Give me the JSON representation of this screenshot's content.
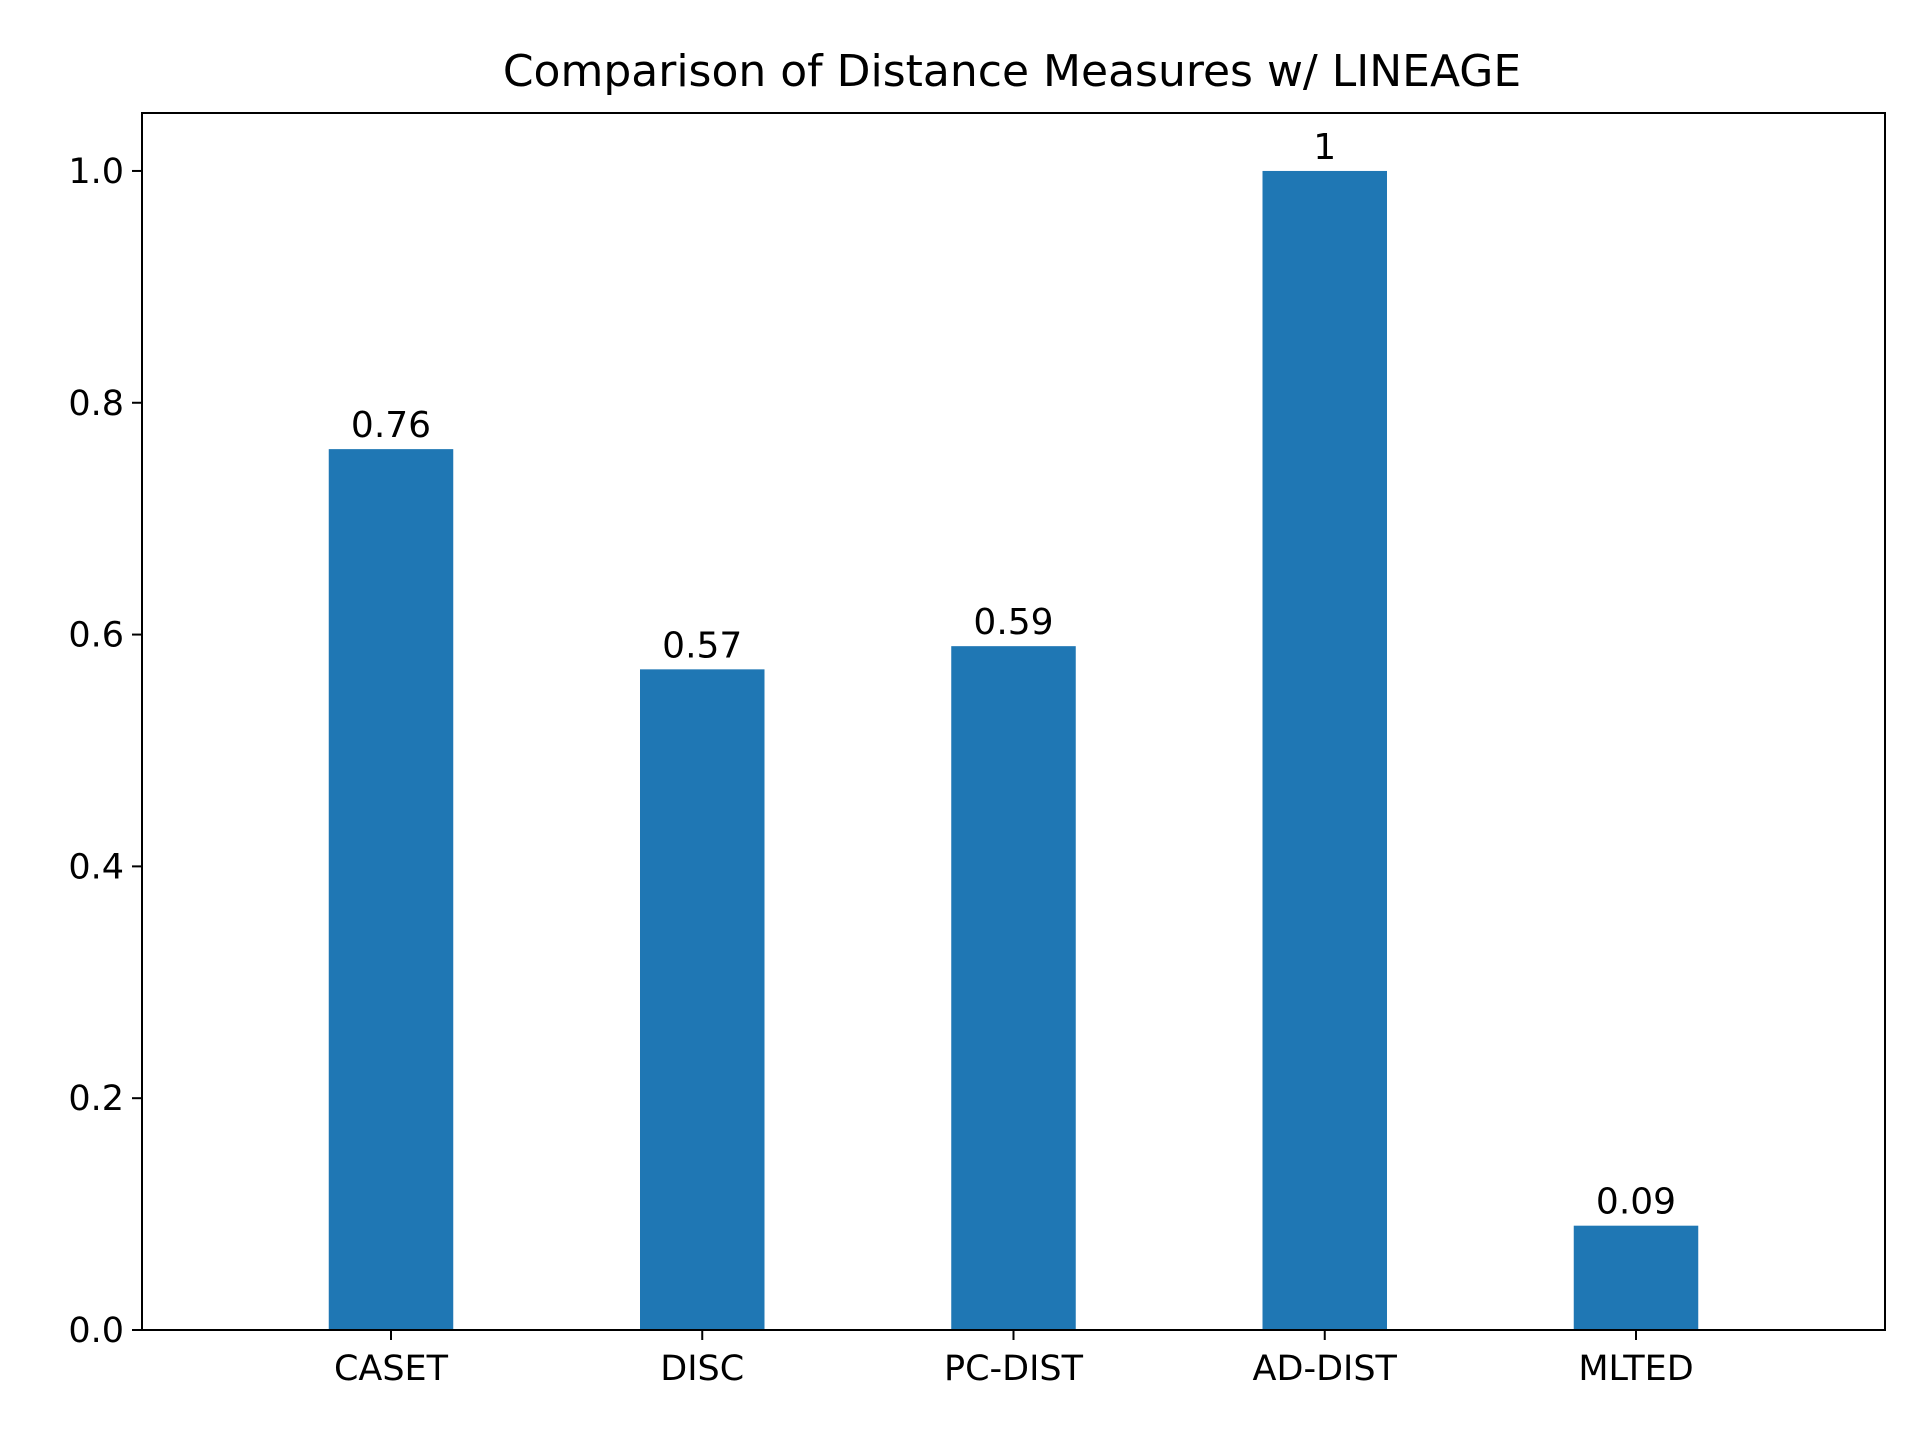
{
  "chart_data": {
    "type": "bar",
    "title": "Comparison of Distance Measures w/ LINEAGE",
    "xlabel": "",
    "ylabel": "",
    "categories": [
      "CASET",
      "DISC",
      "PC-DIST",
      "AD-DIST",
      "MLTED"
    ],
    "values": [
      0.76,
      0.57,
      0.59,
      1.0,
      0.09
    ],
    "data_labels": [
      "0.76",
      "0.57",
      "0.59",
      "1",
      "0.09"
    ],
    "ylim": [
      0,
      1.05
    ],
    "yticks": [
      0.0,
      0.2,
      0.4,
      0.6,
      0.8,
      1.0
    ],
    "ytick_labels": [
      "0.0",
      "0.2",
      "0.4",
      "0.6",
      "0.8",
      "1.0"
    ],
    "grid": false,
    "bar_color": "#1f77b4"
  }
}
